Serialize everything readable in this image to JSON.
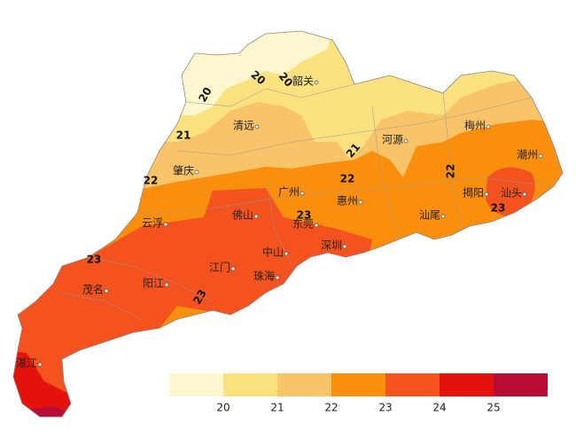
{
  "cities": [
    "韶关",
    "清远",
    "河源",
    "梅州",
    "潮州",
    "肇庆",
    "广州",
    "惠州",
    "揭阳",
    "汕头",
    "云浮",
    "佛山",
    "东莞",
    "汕尾",
    "深圳",
    "中山",
    "江门",
    "珠海",
    "茂名",
    "阳江",
    "湛江"
  ],
  "contour_labels": [
    20,
    20,
    20,
    21,
    21,
    22,
    22,
    22,
    23,
    23,
    23,
    23
  ],
  "legend": {
    "colors": [
      "#fdf7cf",
      "#fbe17f",
      "#f9c469",
      "#f98f0c",
      "#f4531f",
      "#e3120b",
      "#b80c35"
    ],
    "ticks": [
      20,
      21,
      22,
      23,
      24,
      25
    ]
  }
}
